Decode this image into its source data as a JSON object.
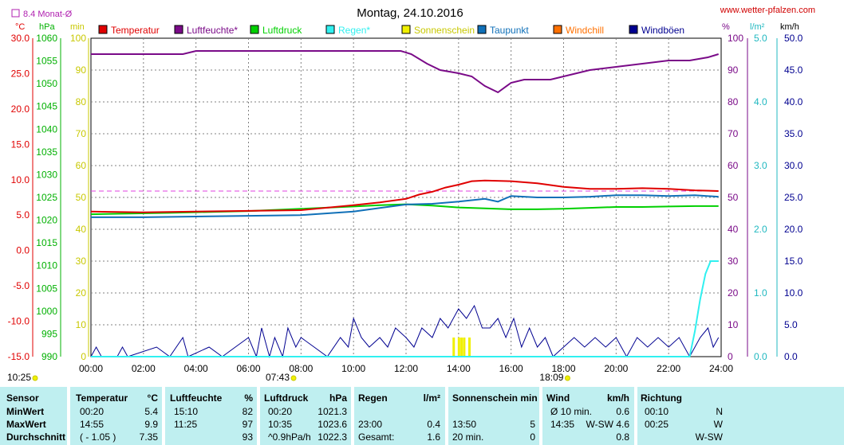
{
  "header": {
    "title": "Montag, 24.10.2016",
    "website": "www.wetter-pfalzen.com",
    "avg_label": "8.4 Monat-Ø",
    "unit_temp": "°C",
    "unit_hpa": "hPa",
    "unit_min": "min",
    "unit_pct": "%",
    "unit_lm2": "l/m²",
    "unit_kmh": "km/h"
  },
  "colors": {
    "temp": "#e00000",
    "humidity": "#7a0a88",
    "pressure": "#00d000",
    "rain": "#30f0f0",
    "sun": "#f0f000",
    "dewpoint": "#1070b8",
    "windchill": "#ff7000",
    "gust": "#000090",
    "wind_avg": "#303030",
    "avg_line": "#e040e0",
    "stats_bg": "#bfeff0"
  },
  "chart_data": {
    "type": "line",
    "x_labels": [
      "00:00",
      "02:00",
      "04:00",
      "06:00",
      "08:00",
      "10:00",
      "12:00",
      "14:00",
      "16:00",
      "18:00",
      "20:00",
      "22:00",
      "24:00"
    ],
    "x_range_h": [
      0,
      24
    ],
    "legend": [
      "Temperatur",
      "Luftfeuchte*",
      "Luftdruck",
      "Regen*",
      "Sonnenschein",
      "Taupunkt",
      "Windchill",
      "Windböen"
    ],
    "axes": {
      "temp_c": {
        "range": [
          -15,
          30
        ],
        "ticks": [
          "30.0",
          "25.0",
          "20.0",
          "15.0",
          "10.0",
          "5.0",
          "0.0",
          "-5.0",
          "-10.0",
          "-15.0"
        ]
      },
      "pressure_hpa": {
        "range": [
          990,
          1060
        ],
        "ticks": [
          "1060",
          "1055",
          "1050",
          "1045",
          "1040",
          "1035",
          "1030",
          "1025",
          "1020",
          "1015",
          "1010",
          "1005",
          "1000",
          "995",
          "990"
        ]
      },
      "sun_min": {
        "range": [
          0,
          100
        ],
        "ticks": [
          "100",
          "90",
          "80",
          "70",
          "60",
          "50",
          "40",
          "30",
          "20",
          "10",
          "0"
        ]
      },
      "humidity_pct": {
        "range": [
          0,
          100
        ],
        "ticks": [
          "100",
          "90",
          "80",
          "70",
          "60",
          "50",
          "40",
          "30",
          "20",
          "10",
          "0"
        ]
      },
      "rain_lm2": {
        "range": [
          0,
          5
        ],
        "ticks": [
          "5.0",
          "4.0",
          "3.0",
          "2.0",
          "1.0",
          "0.0"
        ]
      },
      "wind_kmh": {
        "range": [
          0,
          50
        ],
        "ticks": [
          "50.0",
          "45.0",
          "40.0",
          "35.0",
          "30.0",
          "25.0",
          "20.0",
          "15.0",
          "10.0",
          "5.0",
          "0.0"
        ]
      }
    },
    "month_avg_temp_c": 8.4,
    "series": [
      {
        "name": "Temperatur",
        "axis": "temp_c",
        "points": [
          [
            0,
            5.5
          ],
          [
            2,
            5.4
          ],
          [
            4,
            5.5
          ],
          [
            6,
            5.6
          ],
          [
            8,
            5.7
          ],
          [
            10,
            6.4
          ],
          [
            11,
            6.8
          ],
          [
            12,
            7.3
          ],
          [
            12.5,
            7.9
          ],
          [
            13,
            8.3
          ],
          [
            13.5,
            8.9
          ],
          [
            14,
            9.3
          ],
          [
            14.5,
            9.8
          ],
          [
            15,
            9.9
          ],
          [
            16,
            9.8
          ],
          [
            17,
            9.5
          ],
          [
            18,
            9.0
          ],
          [
            19,
            8.7
          ],
          [
            20,
            8.7
          ],
          [
            21,
            8.8
          ],
          [
            22,
            8.7
          ],
          [
            23,
            8.5
          ],
          [
            23.9,
            8.4
          ]
        ]
      },
      {
        "name": "Luftfeuchte*",
        "axis": "humidity_pct",
        "points": [
          [
            0,
            95
          ],
          [
            3.5,
            95
          ],
          [
            4,
            96
          ],
          [
            6,
            96
          ],
          [
            8,
            96
          ],
          [
            10,
            96
          ],
          [
            11.8,
            96
          ],
          [
            12.2,
            95
          ],
          [
            12.8,
            92
          ],
          [
            13.3,
            90
          ],
          [
            14,
            89
          ],
          [
            14.5,
            88
          ],
          [
            15,
            85
          ],
          [
            15.5,
            83
          ],
          [
            16,
            86
          ],
          [
            16.5,
            87
          ],
          [
            17,
            87
          ],
          [
            17.5,
            87
          ],
          [
            18,
            88
          ],
          [
            19,
            90
          ],
          [
            20,
            91
          ],
          [
            21,
            92
          ],
          [
            22,
            93
          ],
          [
            22.8,
            93
          ],
          [
            23.5,
            94
          ],
          [
            23.9,
            95
          ]
        ]
      },
      {
        "name": "Luftdruck",
        "axis": "pressure_hpa",
        "points": [
          [
            0,
            1021.3
          ],
          [
            3,
            1021.6
          ],
          [
            6,
            1022.0
          ],
          [
            8,
            1022.5
          ],
          [
            10,
            1023.0
          ],
          [
            11,
            1023.3
          ],
          [
            12,
            1023.5
          ],
          [
            13,
            1023.2
          ],
          [
            14,
            1022.8
          ],
          [
            15,
            1022.6
          ],
          [
            16,
            1022.4
          ],
          [
            17,
            1022.4
          ],
          [
            18,
            1022.5
          ],
          [
            19,
            1022.7
          ],
          [
            20,
            1022.9
          ],
          [
            21,
            1022.9
          ],
          [
            22,
            1023.0
          ],
          [
            23,
            1023.1
          ],
          [
            23.9,
            1023.1
          ]
        ]
      },
      {
        "name": "Taupunkt",
        "axis": "temp_c",
        "points": [
          [
            0,
            4.7
          ],
          [
            2,
            4.7
          ],
          [
            4,
            4.8
          ],
          [
            6,
            4.9
          ],
          [
            8,
            5.0
          ],
          [
            10,
            5.5
          ],
          [
            11,
            6.0
          ],
          [
            12,
            6.5
          ],
          [
            13,
            6.6
          ],
          [
            14,
            6.9
          ],
          [
            15,
            7.3
          ],
          [
            15.5,
            6.9
          ],
          [
            16,
            7.7
          ],
          [
            17,
            7.5
          ],
          [
            18,
            7.5
          ],
          [
            19,
            7.6
          ],
          [
            20,
            7.8
          ],
          [
            21,
            7.8
          ],
          [
            22,
            7.7
          ],
          [
            23,
            7.8
          ],
          [
            23.9,
            7.6
          ]
        ]
      },
      {
        "name": "Regen*",
        "axis": "rain_lm2",
        "points": [
          [
            0,
            0
          ],
          [
            22.8,
            0
          ],
          [
            23.0,
            0.4
          ],
          [
            23.2,
            0.9
          ],
          [
            23.4,
            1.3
          ],
          [
            23.6,
            1.5
          ],
          [
            23.9,
            1.5
          ]
        ]
      },
      {
        "name": "Windböen",
        "axis": "wind_kmh",
        "points": [
          [
            0,
            0
          ],
          [
            0.2,
            1.5
          ],
          [
            0.4,
            0
          ],
          [
            1,
            0
          ],
          [
            1.2,
            1.5
          ],
          [
            1.4,
            0
          ],
          [
            2.5,
            1.5
          ],
          [
            3,
            0
          ],
          [
            3.5,
            3.0
          ],
          [
            3.7,
            0
          ],
          [
            4.5,
            1.5
          ],
          [
            5,
            0
          ],
          [
            5.5,
            1.5
          ],
          [
            6,
            3.0
          ],
          [
            6.3,
            0
          ],
          [
            6.5,
            4.5
          ],
          [
            6.8,
            0
          ],
          [
            7,
            3.0
          ],
          [
            7.3,
            0
          ],
          [
            7.5,
            4.5
          ],
          [
            7.8,
            1.5
          ],
          [
            8,
            3.0
          ],
          [
            8.5,
            1.5
          ],
          [
            9,
            0
          ],
          [
            9.5,
            3.0
          ],
          [
            9.8,
            1.5
          ],
          [
            10,
            6.0
          ],
          [
            10.3,
            3.0
          ],
          [
            10.6,
            1.5
          ],
          [
            11,
            3.0
          ],
          [
            11.3,
            1.5
          ],
          [
            11.6,
            4.5
          ],
          [
            12,
            3.0
          ],
          [
            12.3,
            1.5
          ],
          [
            12.6,
            4.5
          ],
          [
            13,
            3.0
          ],
          [
            13.3,
            6.0
          ],
          [
            13.6,
            4.5
          ],
          [
            14,
            7.5
          ],
          [
            14.3,
            6.0
          ],
          [
            14.6,
            8.0
          ],
          [
            14.9,
            4.5
          ],
          [
            15.2,
            4.5
          ],
          [
            15.5,
            6.0
          ],
          [
            15.8,
            3.0
          ],
          [
            16.1,
            6.0
          ],
          [
            16.4,
            1.5
          ],
          [
            16.7,
            4.5
          ],
          [
            17,
            1.5
          ],
          [
            17.3,
            3.0
          ],
          [
            17.6,
            0
          ],
          [
            18,
            1.5
          ],
          [
            18.4,
            3.0
          ],
          [
            18.8,
            1.5
          ],
          [
            19.2,
            3.0
          ],
          [
            19.6,
            1.5
          ],
          [
            20,
            3.0
          ],
          [
            20.4,
            0
          ],
          [
            20.8,
            3.0
          ],
          [
            21.2,
            1.5
          ],
          [
            21.6,
            3.0
          ],
          [
            22,
            1.5
          ],
          [
            22.4,
            3.0
          ],
          [
            22.8,
            0
          ],
          [
            23.2,
            3.0
          ],
          [
            23.5,
            4.5
          ],
          [
            23.7,
            1.5
          ],
          [
            23.9,
            3.0
          ]
        ]
      }
    ],
    "sunshine_bars": [
      [
        13.8,
        3
      ],
      [
        14.0,
        3
      ],
      [
        14.1,
        3
      ],
      [
        14.2,
        3
      ],
      [
        14.4,
        3
      ]
    ],
    "day_markers": [
      {
        "time": "10:25",
        "h": 0.0
      },
      {
        "time": "07:43",
        "h": 7.717
      },
      {
        "time": "18:09",
        "h": 18.15
      }
    ]
  },
  "stats": {
    "headers": {
      "sensor": "Sensor",
      "temperatur": "Temperatur",
      "temperatur_unit": "°C",
      "luftfeuchte": "Luftfeuchte",
      "luftfeuchte_unit": "%",
      "luftdruck": "Luftdruck",
      "luftdruck_unit": "hPa",
      "regen": "Regen",
      "regen_unit": "l/m²",
      "sonnenschein": "Sonnenschein min",
      "wind": "Wind",
      "wind_unit": "km/h",
      "richtung": "Richtung"
    },
    "rows": [
      {
        "label": "MinWert",
        "temp_time": "00:20",
        "temp_val": "5.4",
        "hum_time": "15:10",
        "hum_val": "82",
        "press_time": "00:20",
        "press_val": "1021.3",
        "rain_time": "",
        "rain_val": "",
        "sun_time": "",
        "sun_val": "",
        "wind_time": "Ø 10 min.",
        "wind_val": "0.6",
        "dir_time": "00:10",
        "dir_val": "N"
      },
      {
        "label": "MaxWert",
        "temp_time": "14:55",
        "temp_val": "9.9",
        "hum_time": "11:25",
        "hum_val": "97",
        "press_time": "10:35",
        "press_val": "1023.6",
        "rain_time": "23:00",
        "rain_val": "0.4",
        "sun_time": "13:50",
        "sun_val": "5",
        "wind_time": "14:35",
        "wind_val": "W-SW 4.6",
        "dir_time": "00:25",
        "dir_val": "W"
      },
      {
        "label": "Durchschnitt",
        "temp_time": "( - 1.05 )",
        "temp_val": "7.35",
        "hum_time": "",
        "hum_val": "93",
        "press_time": "^0.9hPa/h",
        "press_val": "1022.3",
        "rain_time": "Gesamt:",
        "rain_val": "1.6",
        "sun_time": "20 min.",
        "sun_val": "0",
        "wind_time": "",
        "wind_val": "0.8",
        "dir_time": "",
        "dir_val": "W-SW"
      }
    ]
  }
}
